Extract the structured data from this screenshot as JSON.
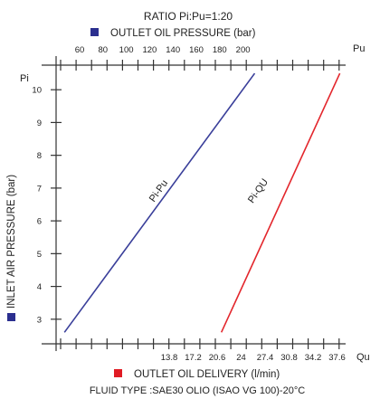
{
  "chart_data": {
    "type": "line",
    "title": "RATIO Pi:Pu=1:20",
    "footer": "FLUID TYPE :SAE30 OLIO (ISAO VG 100)-20°C",
    "top_axis": {
      "label": "OUTLET OIL PRESSURE (bar)",
      "end_label": "Pu",
      "ticks": [
        "60",
        "80",
        "100",
        "120",
        "140",
        "160",
        "180",
        "200"
      ],
      "marker_color": "#2b2f8f"
    },
    "bottom_axis": {
      "label": "OUTLET OIL DELIVERY (l/min)",
      "end_label": "Qu",
      "ticks": [
        "13.8",
        "17.2",
        "20.6",
        "24",
        "27.4",
        "30.8",
        "34.2",
        "37.6"
      ],
      "marker_color": "#e01b24"
    },
    "left_axis": {
      "label": "INLET AIR PRESSURE (bar)",
      "end_label": "Pi",
      "ticks": [
        3,
        4,
        5,
        6,
        7,
        8,
        9,
        10
      ],
      "ylim": [
        2.25,
        10.75
      ],
      "marker_color": "#2b2f8f"
    },
    "series": [
      {
        "name": "Pi-Pu",
        "color": "#3a3f9a",
        "points": [
          {
            "x": 47,
            "y": 2.6
          },
          {
            "x": 210,
            "y": 10.5
          }
        ]
      },
      {
        "name": "Pi-QU",
        "color": "#e3262c",
        "points": [
          {
            "x": 21.2,
            "y": 2.6
          },
          {
            "x": 38.0,
            "y": 10.5
          }
        ]
      }
    ]
  }
}
